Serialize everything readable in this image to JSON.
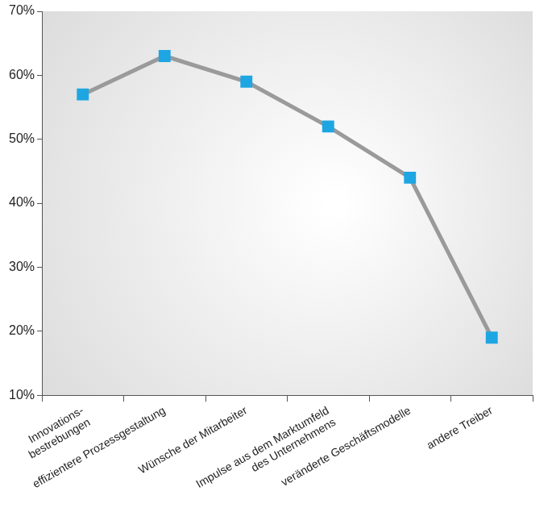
{
  "chart_data": {
    "type": "line",
    "categories": [
      "Innovations-\nbestrebungen",
      "effizientere Prozessgestaltung",
      "Wünsche der Mitarbeiter",
      "Impulse aus dem Marktumfeld\ndes Unternehmens",
      "veränderte Geschäftsmodelle",
      "andere Treiber"
    ],
    "values": [
      57,
      63,
      59,
      52,
      44,
      19
    ],
    "color": "#9a9a9a",
    "marker": "square",
    "ylim": [
      10,
      70
    ],
    "yticks": [
      {
        "value": 10,
        "label": "10%"
      },
      {
        "value": 20,
        "label": "20%"
      },
      {
        "value": 30,
        "label": "30%"
      },
      {
        "value": 40,
        "label": "40%"
      },
      {
        "value": 50,
        "label": "50%"
      },
      {
        "value": 60,
        "label": "60%"
      },
      {
        "value": 70,
        "label": "70%"
      }
    ],
    "grid": false
  }
}
